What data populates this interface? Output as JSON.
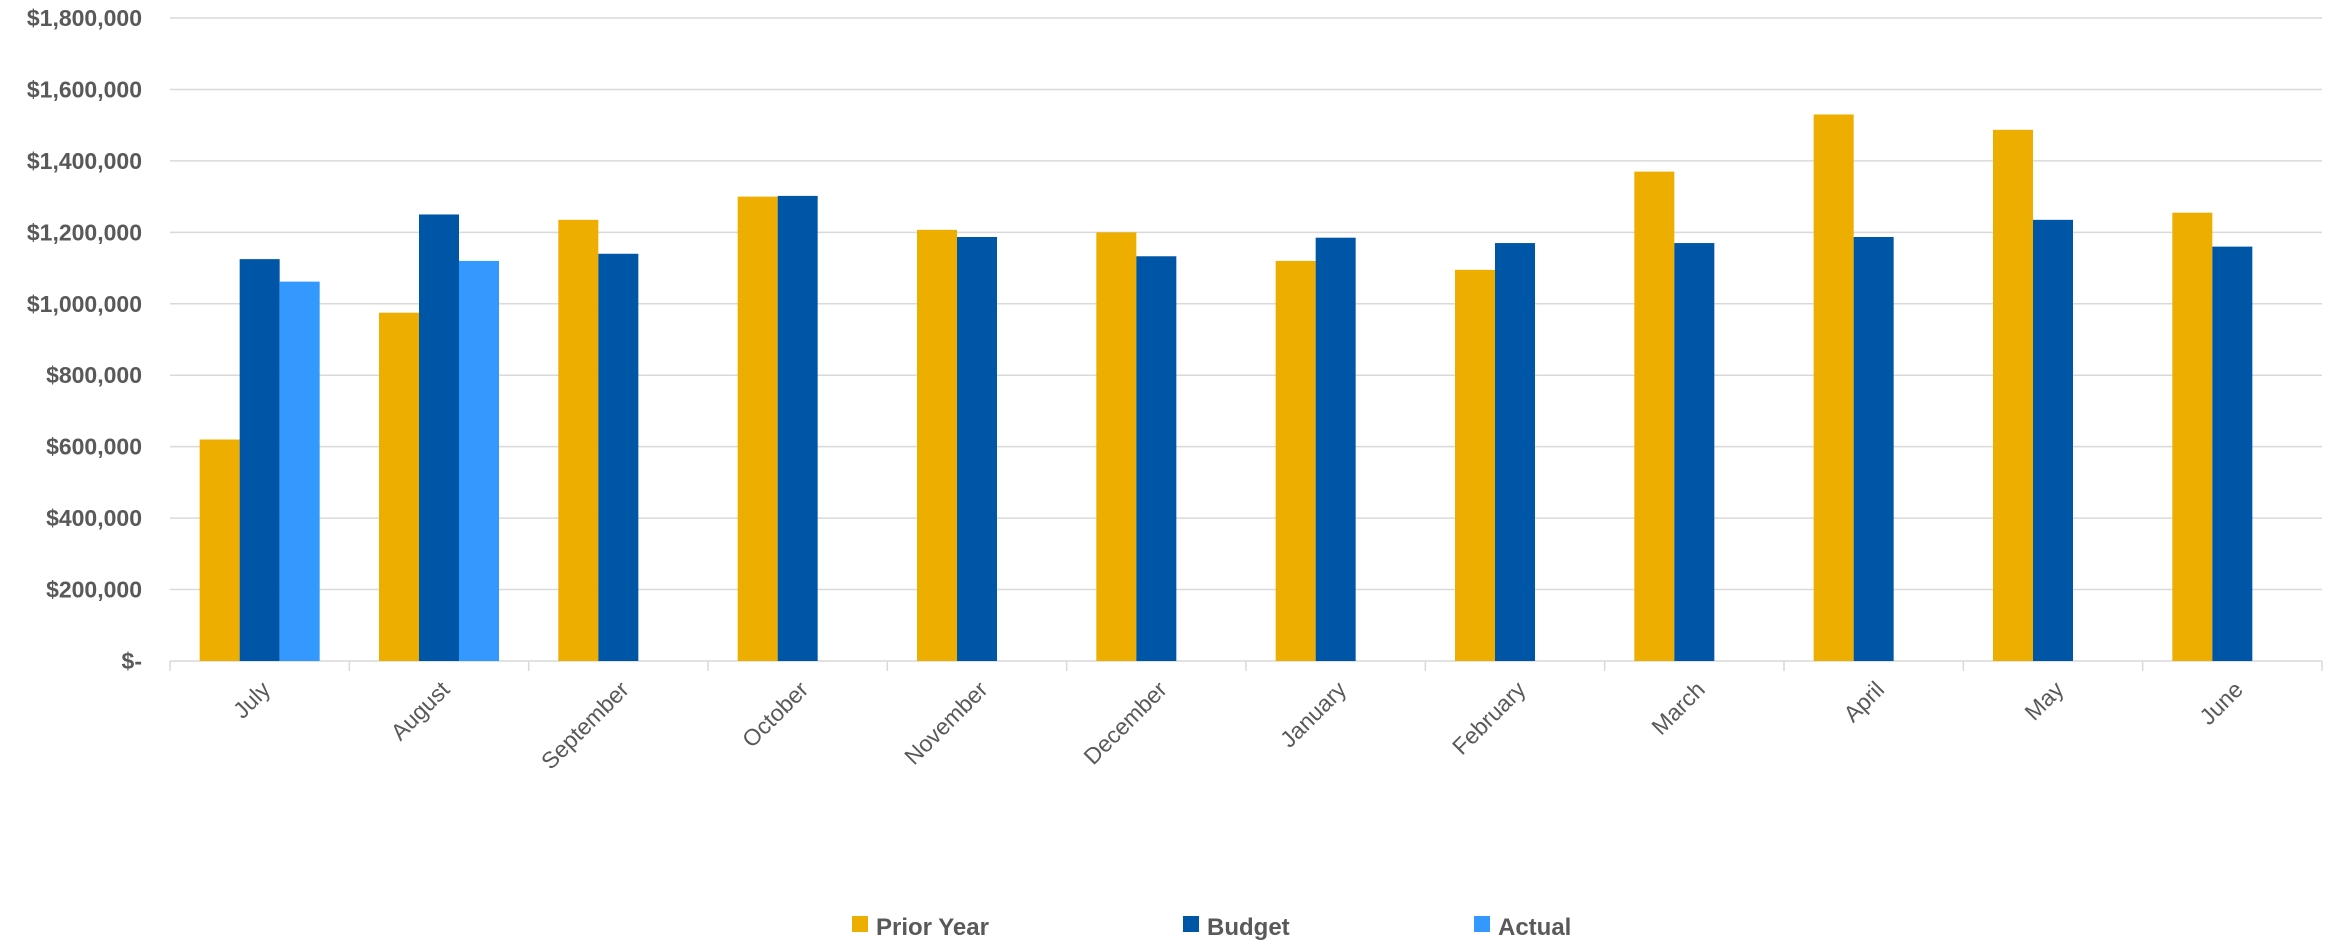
{
  "chart_data": {
    "type": "bar",
    "title": "",
    "xlabel": "",
    "ylabel": "",
    "ylim": [
      0,
      1800000
    ],
    "y_ticks": [
      0,
      200000,
      400000,
      600000,
      800000,
      1000000,
      1200000,
      1400000,
      1600000,
      1800000
    ],
    "y_tick_labels": [
      "$-",
      "$200,000",
      "$400,000",
      "$600,000",
      "$800,000",
      "$1,000,000",
      "$1,200,000",
      "$1,400,000",
      "$1,600,000",
      "$1,800,000"
    ],
    "grid": true,
    "legend_position": "bottom",
    "categories": [
      "July",
      "August",
      "September",
      "October",
      "November",
      "December",
      "January",
      "February",
      "March",
      "April",
      "May",
      "June"
    ],
    "series": [
      {
        "name": "Prior Year",
        "color": "#EDAE00",
        "values": [
          620000,
          975000,
          1235000,
          1300000,
          1207000,
          1200000,
          1120000,
          1095000,
          1370000,
          1530000,
          1487000,
          1255000
        ]
      },
      {
        "name": "Budget",
        "color": "#0056A6",
        "values": [
          1125000,
          1250000,
          1140000,
          1302000,
          1187000,
          1133000,
          1185000,
          1170000,
          1170000,
          1187000,
          1235000,
          1160000
        ]
      },
      {
        "name": "Actual",
        "color": "#3399FF",
        "values": [
          1062000,
          1120000,
          null,
          null,
          null,
          null,
          null,
          null,
          null,
          null,
          null,
          null
        ]
      }
    ]
  }
}
